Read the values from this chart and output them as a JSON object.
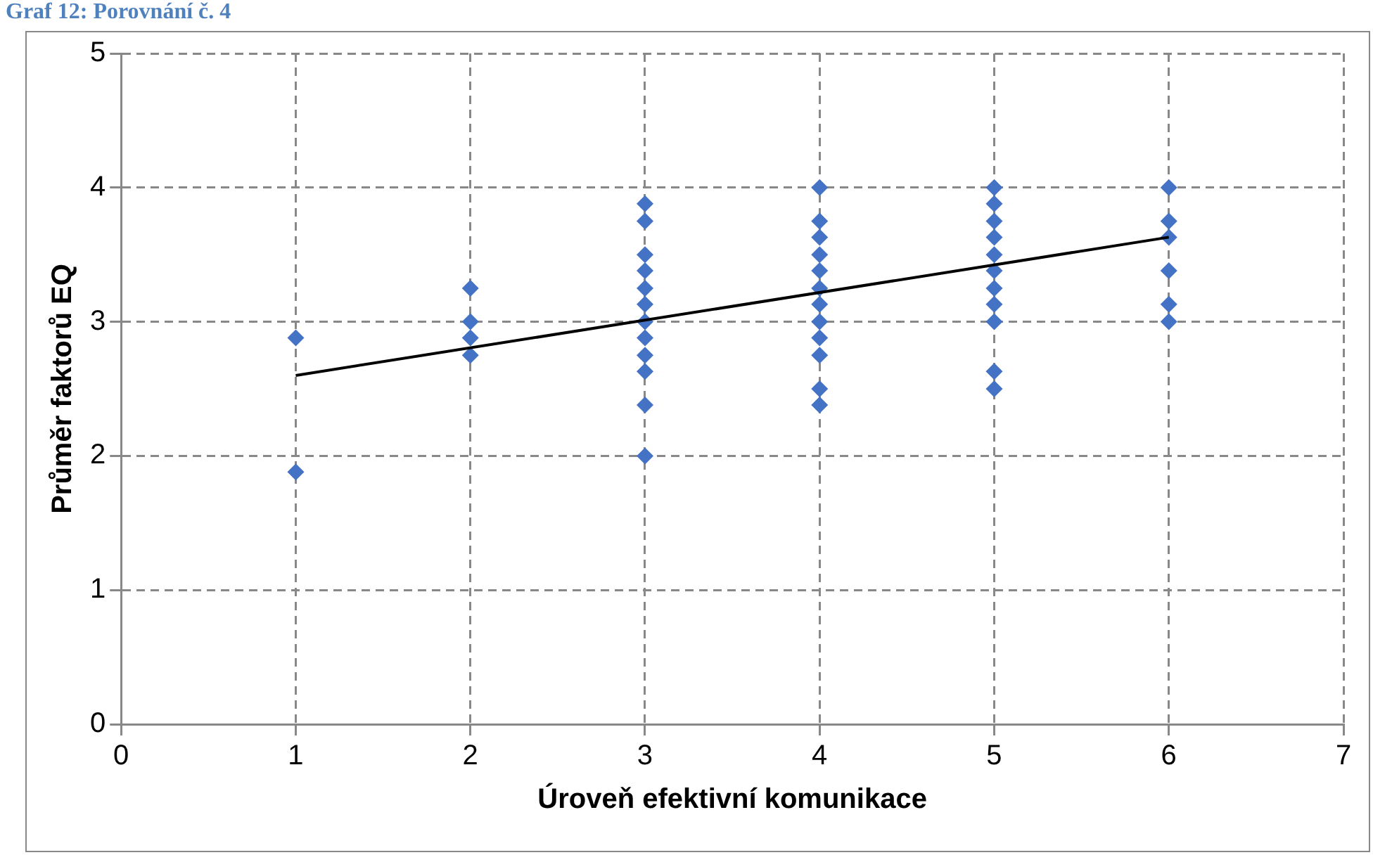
{
  "chart_data": {
    "type": "scatter",
    "title": "Graf 12: Porovnání č. 4",
    "xlabel": "Úroveň efektivní komunikace",
    "ylabel": "Průměr faktorů EQ",
    "xlim": [
      0,
      7
    ],
    "xticks": [
      0,
      1,
      2,
      3,
      4,
      5,
      6,
      7
    ],
    "ylim": [
      0,
      5
    ],
    "yticks": [
      0,
      1,
      2,
      3,
      4,
      5
    ],
    "grid": true,
    "legend": false,
    "marker": "diamond",
    "series": [
      {
        "color": "#4472c4",
        "x": [
          1,
          1,
          2,
          2,
          2,
          2,
          3,
          3,
          3,
          3,
          3,
          3,
          3,
          3,
          3,
          3,
          3,
          3,
          4,
          4,
          4,
          4,
          4,
          4,
          4,
          4,
          4,
          4,
          4,
          4,
          5,
          5,
          5,
          5,
          5,
          5,
          5,
          5,
          5,
          5,
          5,
          6,
          6,
          6,
          6,
          6,
          6
        ],
        "values": [
          2.88,
          1.88,
          3.25,
          3.0,
          2.88,
          2.75,
          3.88,
          3.75,
          3.5,
          3.38,
          3.25,
          3.13,
          3.0,
          2.88,
          2.75,
          2.63,
          2.38,
          2.0,
          4.0,
          3.75,
          3.63,
          3.5,
          3.38,
          3.25,
          3.13,
          3.0,
          2.88,
          2.75,
          2.5,
          2.38,
          4.0,
          3.88,
          3.75,
          3.63,
          3.5,
          3.38,
          3.25,
          3.13,
          3.0,
          2.63,
          2.5,
          4.0,
          3.75,
          3.63,
          3.38,
          3.13,
          3.0
        ]
      },
      {
        "type": "line",
        "color": "#000000",
        "x": [
          1,
          6
        ],
        "values": [
          2.6,
          3.63
        ],
        "marker": "none"
      }
    ]
  }
}
